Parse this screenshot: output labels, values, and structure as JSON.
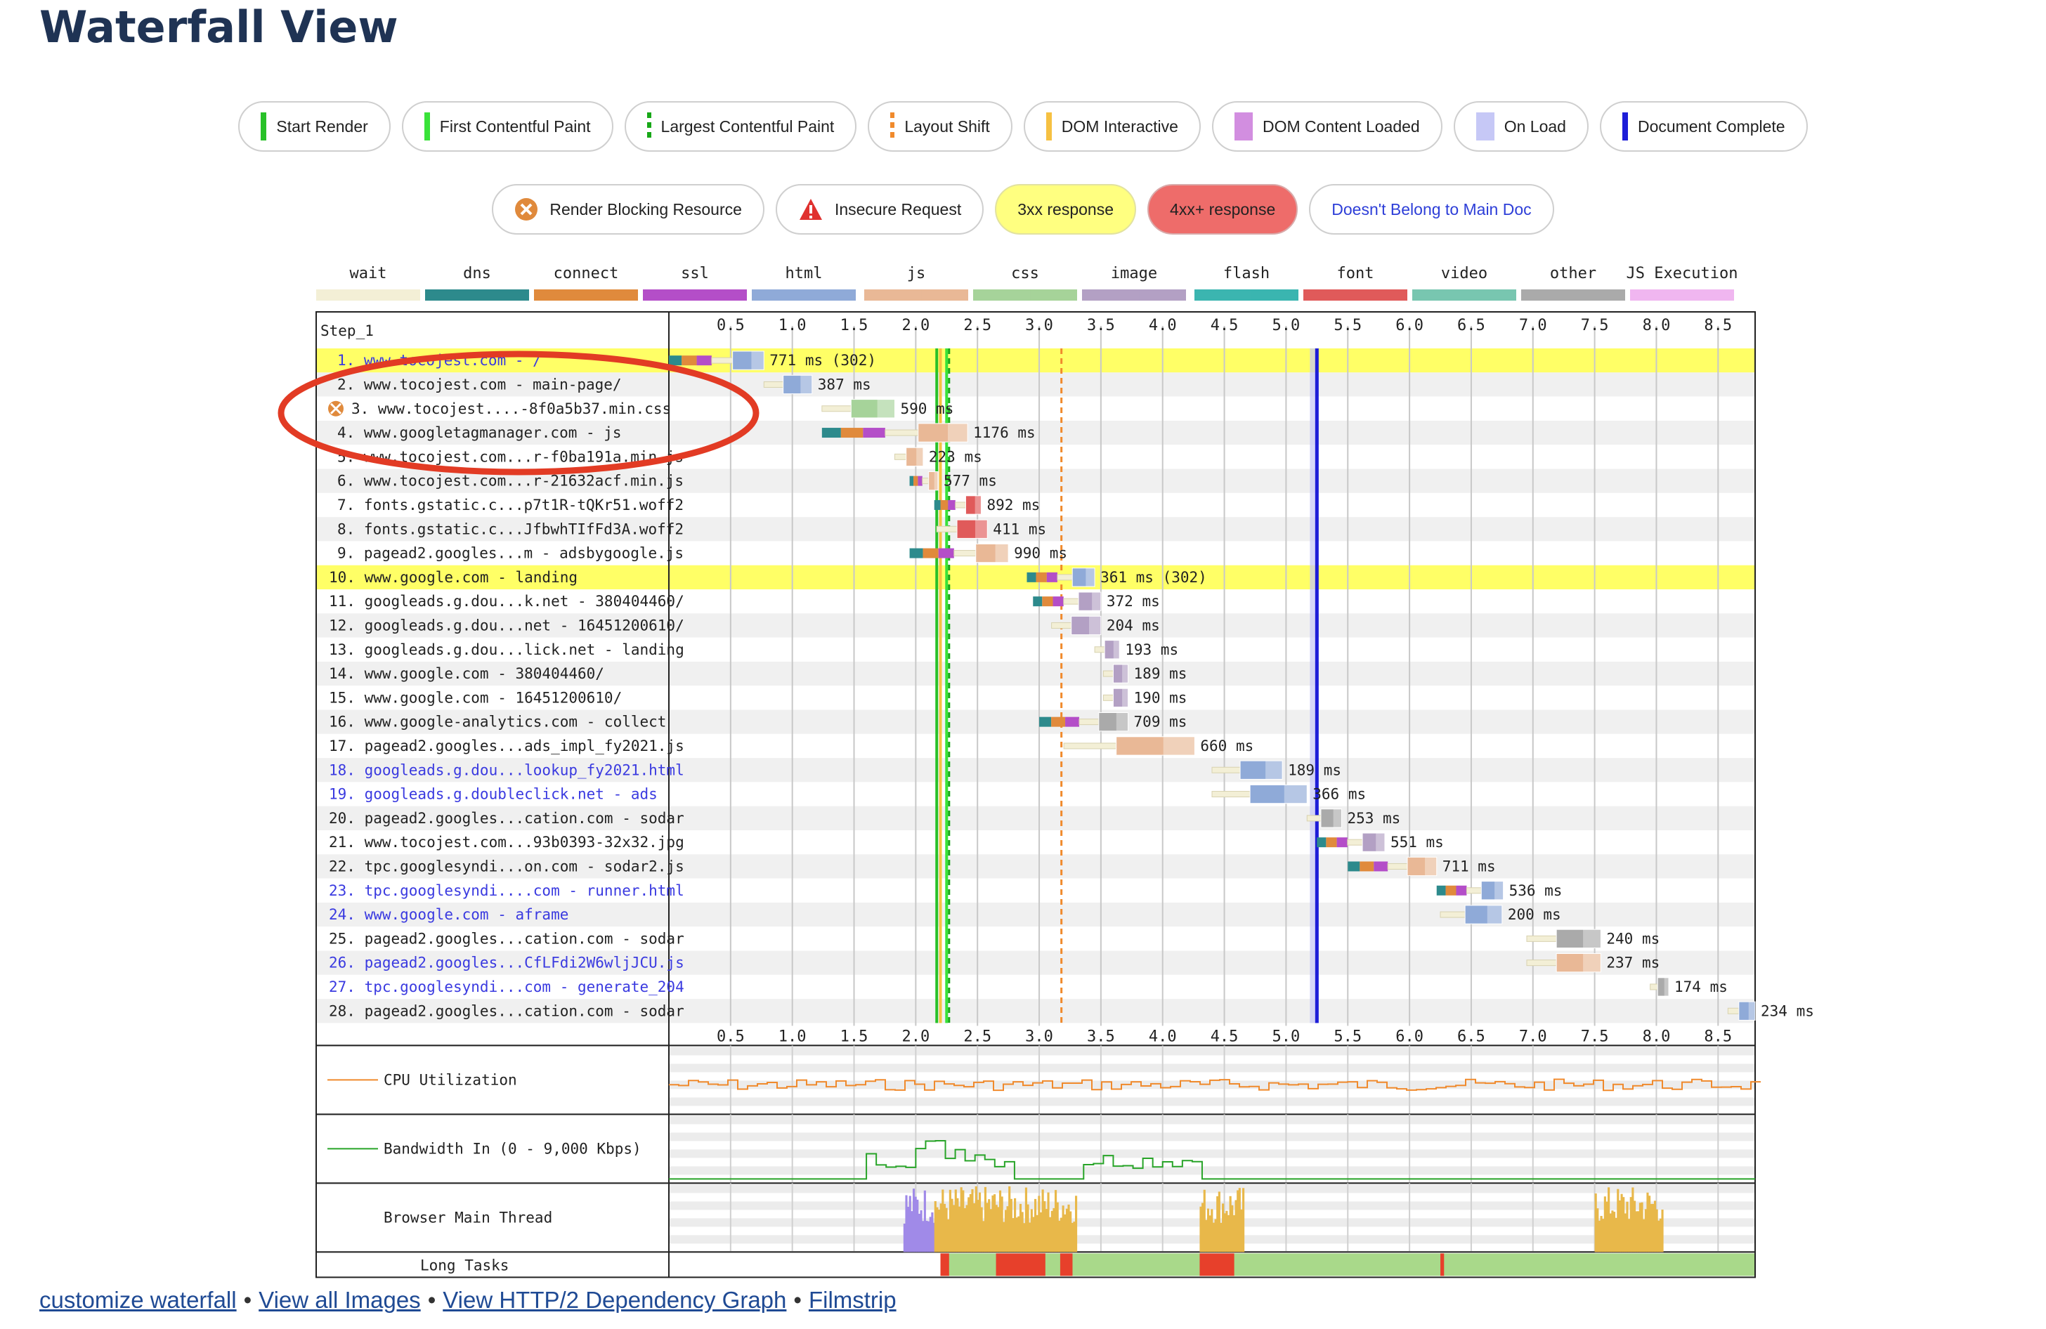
{
  "page_title": "Waterfall View",
  "legend_markers": [
    {
      "label": "Start Render",
      "color": "#28c128",
      "style": "solid"
    },
    {
      "label": "First Contentful Paint",
      "color": "#39e239",
      "style": "solid"
    },
    {
      "label": "Largest Contentful Paint",
      "color": "#17a817",
      "style": "dashed"
    },
    {
      "label": "Layout Shift",
      "color": "#f08a2c",
      "style": "dashed"
    },
    {
      "label": "DOM Interactive",
      "color": "#f6c142",
      "style": "solid"
    },
    {
      "label": "DOM Content Loaded",
      "color": "#d28ee0",
      "style": "wide"
    },
    {
      "label": "On Load",
      "color": "#c6c8f6",
      "style": "wide"
    },
    {
      "label": "Document Complete",
      "color": "#1d1dd8",
      "style": "solid"
    }
  ],
  "legend_badges": [
    {
      "label": "Render Blocking Resource",
      "icon": "render-blocking-icon",
      "kind": "plain"
    },
    {
      "label": "Insecure Request",
      "icon": "warning-triangle-icon",
      "kind": "plain"
    },
    {
      "label": "3xx response",
      "kind": "yellow"
    },
    {
      "label": "4xx+ response",
      "kind": "red"
    },
    {
      "label": "Doesn't Belong to Main Doc",
      "kind": "blue"
    }
  ],
  "type_legend": [
    {
      "label": "wait",
      "color": "#f3efd6"
    },
    {
      "label": "dns",
      "color": "#2d8a8c"
    },
    {
      "label": "connect",
      "color": "#e08a3c"
    },
    {
      "label": "ssl",
      "color": "#b44ec8"
    },
    {
      "label": "html",
      "color": "#8faad8"
    },
    {
      "label": "js",
      "color": "#e9b896"
    },
    {
      "label": "css",
      "color": "#a6d39a"
    },
    {
      "label": "image",
      "color": "#b3a0c4"
    },
    {
      "label": "flash",
      "color": "#3bb5b0"
    },
    {
      "label": "font",
      "color": "#e05a5a"
    },
    {
      "label": "video",
      "color": "#78c6b0"
    },
    {
      "label": "other",
      "color": "#aaaaaa"
    },
    {
      "label": "JS Execution",
      "color": "#f0b6f0"
    }
  ],
  "waterfall": {
    "step_label": "Step_1",
    "axis_ticks": [
      "0.5",
      "1.0",
      "1.5",
      "2.0",
      "2.5",
      "3.0",
      "3.5",
      "4.0",
      "4.5",
      "5.0",
      "5.5",
      "6.0",
      "6.5",
      "7.0",
      "7.5",
      "8.0",
      "8.5"
    ],
    "axis_max_seconds": 8.8,
    "markers_seconds": {
      "start_render": 2.17,
      "first_contentful_paint": 2.25,
      "largest_contentful_paint": 2.27,
      "layout_shift": 3.18,
      "dom_interactive": 2.2,
      "document_complete": 5.25
    },
    "requests": [
      {
        "n": 1,
        "label": "www.tocojest.com - /",
        "start": 0.0,
        "end": 0.77,
        "duration": "771 ms (302)",
        "type": "html",
        "highlight": "yellow",
        "blue": true,
        "connect": true
      },
      {
        "n": 2,
        "label": "www.tocojest.com - main-page/",
        "start": 0.77,
        "end": 1.16,
        "duration": "387 ms",
        "type": "html"
      },
      {
        "n": 3,
        "label": "www.tocojest....-8f0a5b37.min.css",
        "start": 1.24,
        "end": 1.83,
        "duration": "590 ms",
        "type": "css",
        "blocking": true
      },
      {
        "n": 4,
        "label": "www.googletagmanager.com - js",
        "start": 1.24,
        "end": 2.42,
        "duration": "1176 ms",
        "type": "js",
        "connect": true
      },
      {
        "n": 5,
        "label": "www.tocojest.com...r-f0ba191a.min.js",
        "start": 1.83,
        "end": 2.06,
        "duration": "223 ms",
        "type": "js"
      },
      {
        "n": 6,
        "label": "www.tocojest.com...r-21632acf.min.js",
        "start": 1.95,
        "end": 2.18,
        "duration": "577 ms",
        "type": "js",
        "connect": true
      },
      {
        "n": 7,
        "label": "fonts.gstatic.c...p7t1R-tQKr51.woff2",
        "start": 2.15,
        "end": 2.53,
        "duration": "892 ms",
        "type": "font",
        "connect": true
      },
      {
        "n": 8,
        "label": "fonts.gstatic.c...JfbwhTIfFd3A.woff2",
        "start": 2.17,
        "end": 2.58,
        "duration": "411 ms",
        "type": "font"
      },
      {
        "n": 9,
        "label": "pagead2.googles...m - adsbygoogle.js",
        "start": 1.95,
        "end": 2.75,
        "duration": "990 ms",
        "type": "js",
        "connect": true
      },
      {
        "n": 10,
        "label": "www.google.com - landing",
        "start": 2.9,
        "end": 3.45,
        "duration": "361 ms (302)",
        "type": "html",
        "highlight": "yellow",
        "connect": true
      },
      {
        "n": 11,
        "label": "googleads.g.dou...k.net - 380404460/",
        "start": 2.95,
        "end": 3.5,
        "duration": "372 ms",
        "type": "image",
        "connect": true
      },
      {
        "n": 12,
        "label": "googleads.g.dou...net - 16451200610/",
        "start": 3.1,
        "end": 3.5,
        "duration": "204 ms",
        "type": "image"
      },
      {
        "n": 13,
        "label": "googleads.g.dou...lick.net - landing",
        "start": 3.45,
        "end": 3.65,
        "duration": "193 ms",
        "type": "image"
      },
      {
        "n": 14,
        "label": "www.google.com - 380404460/",
        "start": 3.52,
        "end": 3.72,
        "duration": "189 ms",
        "type": "image"
      },
      {
        "n": 15,
        "label": "www.google.com - 16451200610/",
        "start": 3.52,
        "end": 3.72,
        "duration": "190 ms",
        "type": "image"
      },
      {
        "n": 16,
        "label": "www.google-analytics.com - collect",
        "start": 3.0,
        "end": 3.72,
        "duration": "709 ms",
        "type": "other",
        "connect": true
      },
      {
        "n": 17,
        "label": "pagead2.googles...ads_impl_fy2021.js",
        "start": 3.2,
        "end": 4.26,
        "duration": "660 ms",
        "type": "js"
      },
      {
        "n": 18,
        "label": "googleads.g.dou...lookup_fy2021.html",
        "start": 4.4,
        "end": 4.97,
        "duration": "189 ms",
        "type": "html",
        "blue": true
      },
      {
        "n": 19,
        "label": "googleads.g.doubleclick.net - ads",
        "start": 4.4,
        "end": 5.17,
        "duration": "366 ms",
        "type": "html",
        "blue": true
      },
      {
        "n": 20,
        "label": "pagead2.googles...cation.com - sodar",
        "start": 5.17,
        "end": 5.45,
        "duration": "253 ms",
        "type": "other"
      },
      {
        "n": 21,
        "label": "www.tocojest.com...93b0393-32x32.jpg",
        "start": 5.25,
        "end": 5.8,
        "duration": "551 ms",
        "type": "image",
        "connect": true
      },
      {
        "n": 22,
        "label": "tpc.googlesyndi...on.com - sodar2.js",
        "start": 5.5,
        "end": 6.22,
        "duration": "711 ms",
        "type": "js",
        "connect": true
      },
      {
        "n": 23,
        "label": "tpc.googlesyndi....com - runner.html",
        "start": 6.22,
        "end": 6.76,
        "duration": "536 ms",
        "type": "html",
        "blue": true,
        "connect": true
      },
      {
        "n": 24,
        "label": "www.google.com - aframe",
        "start": 6.25,
        "end": 6.75,
        "duration": "200 ms",
        "type": "html",
        "blue": true
      },
      {
        "n": 25,
        "label": "pagead2.googles...cation.com - sodar",
        "start": 6.95,
        "end": 7.55,
        "duration": "240 ms",
        "type": "other"
      },
      {
        "n": 26,
        "label": "pagead2.googles...CfLFdi2W6wljJCU.js",
        "start": 6.95,
        "end": 7.55,
        "duration": "237 ms",
        "type": "js",
        "blue": true
      },
      {
        "n": 27,
        "label": "tpc.googlesyndi...com - generate_204",
        "start": 7.95,
        "end": 8.1,
        "duration": "174 ms",
        "type": "other",
        "blue": true
      },
      {
        "n": 28,
        "label": "pagead2.googles...cation.com - sodar",
        "start": 8.58,
        "end": 8.8,
        "duration": "234 ms",
        "type": "html"
      }
    ],
    "panels": {
      "cpu": "CPU Utilization",
      "bandwidth": "Bandwidth In (0 - 9,000 Kbps)",
      "main_thread": "Browser Main Thread",
      "long_tasks": "Long Tasks"
    }
  },
  "footer_links": [
    "customize waterfall",
    "View all Images",
    "View HTTP/2 Dependency Graph",
    "Filmstrip"
  ]
}
